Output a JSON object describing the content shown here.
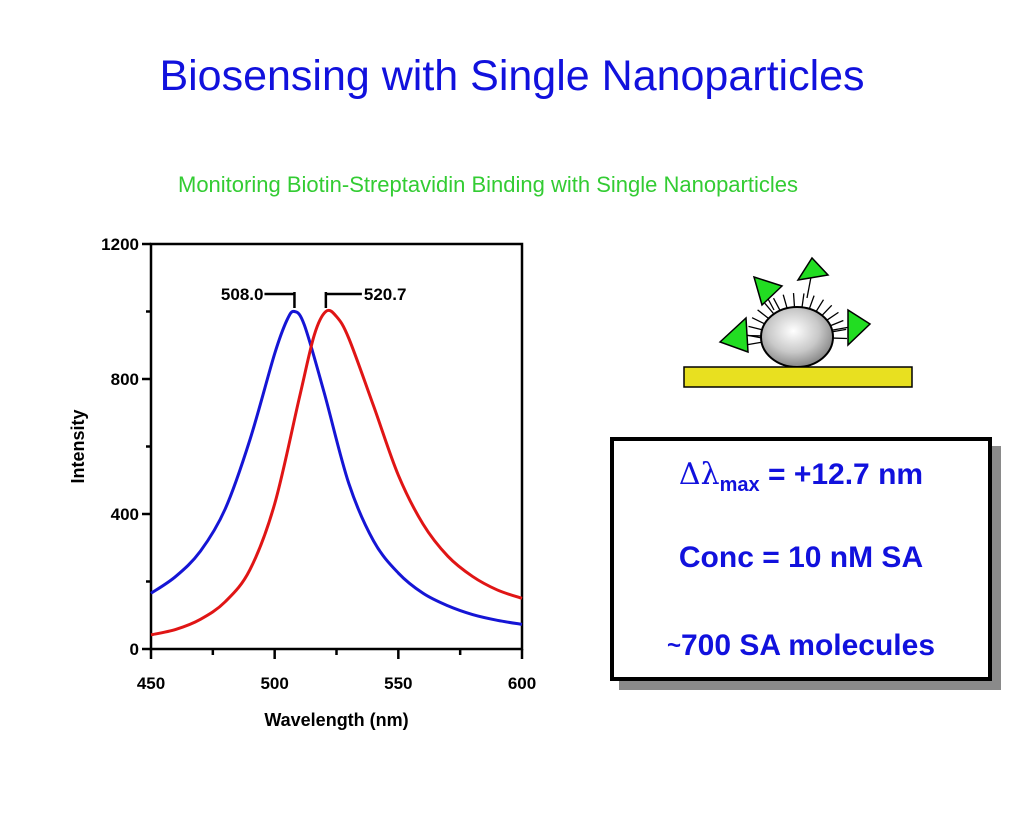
{
  "slide": {
    "title": "Biosensing with Single Nanoparticles",
    "subtitle": "Monitoring Biotin-Streptavidin Binding with Single Nanoparticles"
  },
  "chart_data": {
    "type": "line",
    "xlabel": "Wavelength (nm)",
    "ylabel": "Intensity",
    "xlim": [
      450,
      600
    ],
    "ylim": [
      0,
      1200
    ],
    "xticks": [
      450,
      500,
      550,
      600
    ],
    "yticks": [
      0,
      400,
      800,
      1200
    ],
    "grid": false,
    "series": [
      {
        "color": "#1515d5",
        "x": [
          450,
          460,
          470,
          480,
          490,
          500,
          505,
          508,
          512,
          520,
          530,
          540,
          550,
          560,
          570,
          580,
          590,
          600
        ],
        "y": [
          165,
          215,
          290,
          415,
          620,
          875,
          975,
          1000,
          960,
          760,
          490,
          320,
          225,
          165,
          128,
          102,
          85,
          73
        ]
      },
      {
        "color": "#e01515",
        "x": [
          450,
          460,
          470,
          480,
          490,
          500,
          510,
          516,
          520.7,
          525,
          530,
          540,
          550,
          560,
          570,
          580,
          590,
          600
        ],
        "y": [
          42,
          58,
          88,
          140,
          235,
          430,
          745,
          930,
          1000,
          985,
          920,
          720,
          515,
          370,
          275,
          215,
          175,
          150
        ]
      }
    ],
    "annotations": [
      {
        "text": "508.0",
        "x": 508.0,
        "color": "#1515d5"
      },
      {
        "text": "520.7",
        "x": 520.7,
        "color": "#e01515"
      }
    ]
  },
  "info_box": {
    "delta_symbol": "Δλ",
    "delta_sub": "max",
    "delta_value": " = +12.7 nm",
    "conc": "Conc = 10 nM SA",
    "tilde": "~",
    "molecules": "700 SA molecules"
  },
  "schematic": {
    "substrate_color": "#e8e020",
    "triangle_color": "#22dd22"
  }
}
